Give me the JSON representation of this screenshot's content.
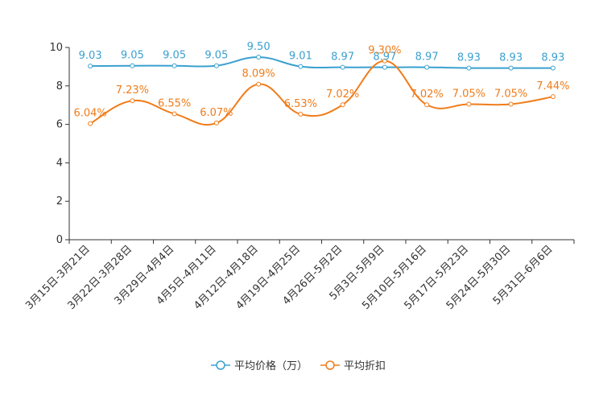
{
  "chart_data": {
    "type": "line",
    "categories": [
      "3月15日-3月21日",
      "3月22日-3月28日",
      "3月29日-4月4日",
      "4月5日-4月11日",
      "4月12日-4月18日",
      "4月19日-4月25日",
      "4月26日-5月2日",
      "5月3日-5月9日",
      "5月10日-5月16日",
      "5月17日-5月23日",
      "5月24日-5月30日",
      "5月31日-6月6日"
    ],
    "ylim": [
      0,
      10
    ],
    "yticks": [
      0,
      2,
      4,
      6,
      8,
      10
    ],
    "series": [
      {
        "name": "平均价格（万）",
        "color": "#3ba0d0",
        "values": [
          9.03,
          9.05,
          9.05,
          9.05,
          9.5,
          9.01,
          8.97,
          8.97,
          8.97,
          8.93,
          8.93,
          8.93
        ],
        "labels": [
          "9.03",
          "9.05",
          "9.05",
          "9.05",
          "9.50",
          "9.01",
          "8.97",
          "8.97",
          "8.97",
          "8.93",
          "8.93",
          "8.93"
        ]
      },
      {
        "name": "平均折扣",
        "color": "#f07c1a",
        "values": [
          6.04,
          7.23,
          6.55,
          6.07,
          8.09,
          6.53,
          7.02,
          9.3,
          7.02,
          7.05,
          7.05,
          7.44
        ],
        "labels": [
          "6.04%",
          "7.23%",
          "6.55%",
          "6.07%",
          "8.09%",
          "6.53%",
          "7.02%",
          "9.30%",
          "7.02%",
          "7.05%",
          "7.05%",
          "7.44%"
        ]
      }
    ]
  }
}
